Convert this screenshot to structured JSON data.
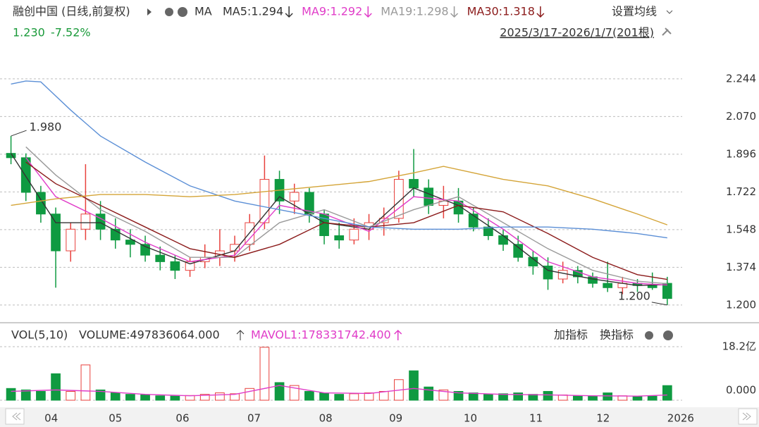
{
  "header": {
    "title": "融创中国 (日线,前复权)",
    "indicator": "MA",
    "settings": "设置均线",
    "last_price": "1.230",
    "change": "-7.52%",
    "range": "2025/3/17-2026/1/7(201根)",
    "add_indicator": "加指标",
    "switch_indicator": "换指标"
  },
  "chart_data": [
    {
      "type": "candlestick",
      "xlim": [
        0,
        45.5
      ],
      "xticks": [
        {
          "value": 3.2,
          "label": "04"
        },
        {
          "value": 7.5,
          "label": "05"
        },
        {
          "value": 12.0,
          "label": "06"
        },
        {
          "value": 16.8,
          "label": "07"
        },
        {
          "value": 21.6,
          "label": "08"
        },
        {
          "value": 26.3,
          "label": "09"
        },
        {
          "value": 31.3,
          "label": "10"
        },
        {
          "value": 35.7,
          "label": "11"
        },
        {
          "value": 40.2,
          "label": "12"
        },
        {
          "value": 45.4,
          "label": "2026"
        }
      ],
      "ylim": [
        1.128,
        2.299
      ],
      "yticks": [
        {
          "value": 1.2,
          "label": "1.200"
        },
        1.374,
        1.548,
        1.722,
        1.896,
        {
          "value": 2.07,
          "label": "2.070"
        },
        2.244
      ],
      "grid": true,
      "up_color": "#e8413d",
      "down_color": "#0f9a41",
      "open": [
        1.9,
        1.88,
        1.72,
        1.62,
        1.45,
        1.55,
        1.62,
        1.55,
        1.5,
        1.48,
        1.43,
        1.4,
        1.36,
        1.4,
        1.42,
        1.45,
        1.48,
        1.58,
        1.78,
        1.68,
        1.72,
        1.62,
        1.52,
        1.5,
        1.55,
        1.58,
        1.6,
        1.78,
        1.74,
        1.66,
        1.68,
        1.62,
        1.56,
        1.52,
        1.48,
        1.42,
        1.38,
        1.32,
        1.36,
        1.33,
        1.3,
        1.28,
        1.3,
        1.29,
        1.3
      ],
      "high": [
        1.98,
        1.9,
        1.75,
        1.65,
        1.58,
        1.85,
        1.68,
        1.6,
        1.55,
        1.52,
        1.47,
        1.43,
        1.42,
        1.48,
        1.55,
        1.52,
        1.62,
        1.89,
        1.82,
        1.76,
        1.74,
        1.64,
        1.58,
        1.6,
        1.62,
        1.65,
        1.82,
        1.92,
        1.78,
        1.75,
        1.74,
        1.65,
        1.6,
        1.55,
        1.52,
        1.45,
        1.42,
        1.4,
        1.38,
        1.35,
        1.4,
        1.33,
        1.32,
        1.35,
        1.33
      ],
      "low": [
        1.85,
        1.68,
        1.58,
        1.28,
        1.4,
        1.5,
        1.5,
        1.46,
        1.42,
        1.4,
        1.36,
        1.32,
        1.33,
        1.37,
        1.38,
        1.4,
        1.45,
        1.55,
        1.62,
        1.62,
        1.58,
        1.48,
        1.46,
        1.48,
        1.5,
        1.52,
        1.58,
        1.7,
        1.62,
        1.6,
        1.58,
        1.54,
        1.5,
        1.45,
        1.4,
        1.34,
        1.27,
        1.3,
        1.3,
        1.28,
        1.26,
        1.25,
        1.26,
        1.27,
        1.2
      ],
      "close": [
        1.88,
        1.72,
        1.62,
        1.45,
        1.55,
        1.62,
        1.55,
        1.5,
        1.48,
        1.43,
        1.4,
        1.36,
        1.4,
        1.42,
        1.45,
        1.48,
        1.58,
        1.78,
        1.68,
        1.72,
        1.62,
        1.52,
        1.5,
        1.55,
        1.58,
        1.6,
        1.78,
        1.74,
        1.66,
        1.68,
        1.62,
        1.56,
        1.52,
        1.48,
        1.42,
        1.38,
        1.32,
        1.36,
        1.33,
        1.3,
        1.28,
        1.3,
        1.29,
        1.28,
        1.23
      ],
      "series": [
        {
          "name": "MA5:1.294",
          "color": "#333333",
          "x": [
            0,
            3,
            6,
            9,
            12,
            15,
            18,
            21,
            24,
            27,
            30,
            33,
            36,
            39,
            42,
            44
          ],
          "values": [
            1.9,
            1.58,
            1.58,
            1.47,
            1.39,
            1.45,
            1.7,
            1.58,
            1.55,
            1.74,
            1.66,
            1.52,
            1.36,
            1.32,
            1.29,
            1.294
          ]
        },
        {
          "name": "MA9:1.292",
          "color": "#e03cc8",
          "x": [
            1,
            3,
            6,
            9,
            12,
            15,
            18,
            21,
            24,
            27,
            30,
            33,
            36,
            39,
            42,
            44
          ],
          "values": [
            1.88,
            1.7,
            1.6,
            1.49,
            1.4,
            1.43,
            1.66,
            1.62,
            1.54,
            1.7,
            1.68,
            1.55,
            1.4,
            1.33,
            1.3,
            1.292
          ]
        },
        {
          "name": "MA19:1.298",
          "color": "#9a9a9a",
          "x": [
            1,
            3,
            6,
            9,
            12,
            15,
            18,
            21,
            24,
            27,
            30,
            33,
            36,
            39,
            42,
            44
          ],
          "values": [
            1.93,
            1.8,
            1.64,
            1.54,
            1.42,
            1.42,
            1.58,
            1.64,
            1.56,
            1.64,
            1.7,
            1.58,
            1.46,
            1.36,
            1.31,
            1.298
          ]
        },
        {
          "name": "MA30:1.318",
          "color": "#8b1a1a",
          "x": [
            1,
            3,
            6,
            9,
            12,
            15,
            18,
            21,
            24,
            27,
            30,
            33,
            36,
            39,
            42,
            44
          ],
          "values": [
            1.86,
            1.76,
            1.66,
            1.56,
            1.46,
            1.42,
            1.48,
            1.58,
            1.56,
            1.58,
            1.66,
            1.63,
            1.53,
            1.42,
            1.34,
            1.318
          ]
        },
        {
          "color": "#5b8fd6",
          "x": [
            0,
            1,
            2,
            4,
            6,
            9,
            12,
            15,
            18,
            21,
            24,
            27,
            30,
            33,
            36,
            39,
            42,
            44
          ],
          "values": [
            2.22,
            2.234,
            2.23,
            2.1,
            1.98,
            1.86,
            1.75,
            1.68,
            1.64,
            1.6,
            1.56,
            1.55,
            1.55,
            1.56,
            1.56,
            1.55,
            1.53,
            1.51
          ]
        },
        {
          "color": "#d4a437",
          "x": [
            0,
            3,
            6,
            9,
            12,
            15,
            18,
            21,
            24,
            27,
            29,
            31,
            33,
            36,
            39,
            42,
            44
          ],
          "values": [
            1.66,
            1.69,
            1.71,
            1.71,
            1.7,
            1.71,
            1.73,
            1.75,
            1.77,
            1.81,
            1.84,
            1.81,
            1.78,
            1.75,
            1.69,
            1.62,
            1.57
          ]
        }
      ],
      "annotations": [
        {
          "label": "1.980",
          "x": 0,
          "y": 1.98
        },
        {
          "label": "1.200",
          "x": 44,
          "y": 1.2
        }
      ]
    },
    {
      "type": "bar",
      "title": "VOL(5,10)",
      "volume_label": "VOLUME:497836064.000",
      "xlim": [
        0,
        45.5
      ],
      "ylim": [
        0,
        1820000000
      ],
      "yticks": [
        {
          "value": 1820000000,
          "label": "18.2亿"
        },
        {
          "value": 0,
          "label": "0.000"
        }
      ],
      "values": [
        400000000,
        350000000,
        300000000,
        900000000,
        300000000,
        1200000000,
        350000000,
        250000000,
        200000000,
        180000000,
        150000000,
        140000000,
        160000000,
        200000000,
        250000000,
        220000000,
        400000000,
        1800000000,
        600000000,
        500000000,
        300000000,
        250000000,
        200000000,
        220000000,
        250000000,
        300000000,
        700000000,
        1000000000,
        450000000,
        350000000,
        300000000,
        250000000,
        200000000,
        220000000,
        250000000,
        200000000,
        300000000,
        180000000,
        150000000,
        140000000,
        250000000,
        150000000,
        130000000,
        140000000,
        497836064
      ],
      "series": [
        {
          "name": "MAVOL1:178331742.400",
          "color": "#e03cc8",
          "x": [
            0,
            3,
            6,
            9,
            12,
            15,
            18,
            21,
            24,
            27,
            30,
            33,
            36,
            39,
            42,
            44
          ],
          "values": [
            300000000,
            350000000,
            300000000,
            200000000,
            150000000,
            200000000,
            500000000,
            250000000,
            230000000,
            400000000,
            250000000,
            200000000,
            180000000,
            150000000,
            140000000,
            178331742.4
          ]
        }
      ]
    }
  ]
}
